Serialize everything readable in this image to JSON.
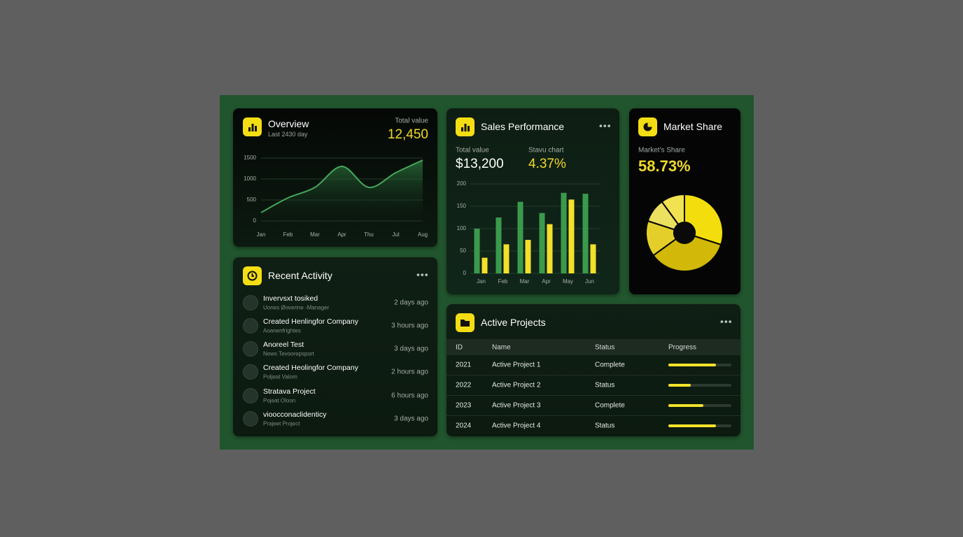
{
  "overview": {
    "title": "Overview",
    "subtitle": "Last 2430 day",
    "total_label": "Total value",
    "total_value": "12,450",
    "chart": {
      "type": "line",
      "categories": [
        "Jan",
        "Feb",
        "Mar",
        "Apr",
        "Thu",
        "Jul",
        "Aug"
      ],
      "values": [
        200,
        550,
        800,
        1300,
        800,
        1150,
        1450
      ],
      "color": "#45a85c",
      "ylim": [
        0,
        1500
      ],
      "yticks": [
        0,
        500,
        1000,
        1500
      ],
      "grid": true
    }
  },
  "sales_performance": {
    "title": "Sales Performance",
    "total_label": "Total value",
    "total_value": "$13,200",
    "rate_label": "Stavu chart",
    "rate_value": "4.37%",
    "chart": {
      "type": "bar",
      "categories": [
        "Jan",
        "Feb",
        "Mar",
        "Apr",
        "May",
        "Jun"
      ],
      "series": [
        {
          "color": "#3a9a4c",
          "values": [
            100,
            125,
            160,
            135,
            180,
            178
          ]
        },
        {
          "color": "#f2e02a",
          "values": [
            35,
            65,
            75,
            110,
            165,
            65
          ]
        }
      ],
      "ylim": [
        0,
        200
      ],
      "yticks": [
        0,
        50,
        100,
        150,
        200
      ],
      "grid": true
    }
  },
  "market_share": {
    "title": "Market Share",
    "label": "Market's Share",
    "value": "58.73%",
    "chart": {
      "type": "pie",
      "values": [
        30,
        35,
        15,
        10,
        10
      ],
      "colors": [
        "#f3dd0c",
        "#d2b808",
        "#e4cf2a",
        "#ece060",
        "#f0e250"
      ]
    }
  },
  "recent_activity": {
    "title": "Recent Activity",
    "items": [
      {
        "title": "Invervsxt tosiked",
        "subtitle": "Uones Øoverine -Manager",
        "time": "2 days ago"
      },
      {
        "title": "Created Henlingfor Company",
        "subtitle": "Aoanenfrightes",
        "time": "3 hours ago"
      },
      {
        "title": "Anoreel Test",
        "subtitle": "News Tevoorepsport",
        "time": "3 days ago"
      },
      {
        "title": "Created Heolingfor Company",
        "subtitle": "Poljeat Valom",
        "time": "2 hours ago"
      },
      {
        "title": "Stratava Project",
        "subtitle": "Pojeat Oloon",
        "time": "6 hours ago"
      },
      {
        "title": "vioocconaclidenticy",
        "subtitle": "Prajeet Project",
        "time": "3 days ago"
      }
    ]
  },
  "active_projects": {
    "title": "Active Projects",
    "columns": [
      "ID",
      "Name",
      "Status",
      "Progress"
    ],
    "rows": [
      {
        "id": "2021",
        "name": "Active Project 1",
        "status": "Complete",
        "progress": 75
      },
      {
        "id": "2022",
        "name": "Active Project 2",
        "status": "Status",
        "progress": 35
      },
      {
        "id": "2023",
        "name": "Active Project 3",
        "status": "Complete",
        "progress": 55
      },
      {
        "id": "2024",
        "name": "Active Project 4",
        "status": "Status",
        "progress": 75
      }
    ]
  }
}
